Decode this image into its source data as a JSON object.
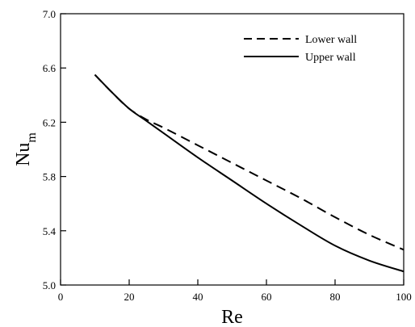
{
  "chart_data": {
    "type": "line",
    "title": "",
    "xlabel": "Re",
    "ylabel": {
      "main": "Nu",
      "subscript": "m"
    },
    "xlim": [
      0,
      100
    ],
    "ylim": [
      5.0,
      7.0
    ],
    "xticks": [
      0,
      20,
      40,
      60,
      80,
      100
    ],
    "yticks": [
      5.0,
      5.4,
      5.8,
      6.2,
      6.6,
      7.0
    ],
    "ytick_labels": [
      "5.0",
      "5.4",
      "5.8",
      "6.2",
      "6.6",
      "7.0"
    ],
    "grid": false,
    "legend_position": "top-right",
    "series": [
      {
        "name": "Lower wall",
        "style": "dashed",
        "color": "#000000",
        "x": [
          10,
          15,
          20,
          25,
          30,
          40,
          50,
          60,
          70,
          80,
          90,
          100
        ],
        "y": [
          6.55,
          6.42,
          6.3,
          6.22,
          6.16,
          6.03,
          5.9,
          5.77,
          5.64,
          5.5,
          5.37,
          5.26
        ]
      },
      {
        "name": "Upper wall",
        "style": "solid",
        "color": "#000000",
        "x": [
          10,
          15,
          20,
          25,
          30,
          40,
          50,
          60,
          70,
          80,
          90,
          100
        ],
        "y": [
          6.55,
          6.42,
          6.3,
          6.21,
          6.12,
          5.94,
          5.77,
          5.6,
          5.44,
          5.29,
          5.18,
          5.1
        ]
      }
    ]
  }
}
